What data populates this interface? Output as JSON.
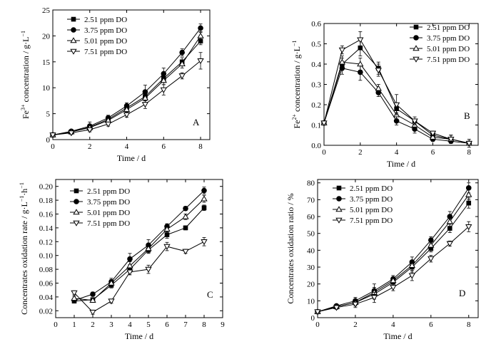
{
  "chart_data": [
    {
      "type": "line",
      "panel_label": "A",
      "xlabel": "Time / d",
      "ylabel_main": "Fe",
      "ylabel_sup": "3+",
      "ylabel_rest": " concentration / g·L",
      "ylabel_unit_sup": "−1",
      "xlim": [
        0,
        8.5
      ],
      "ylim": [
        0,
        25
      ],
      "xticks": [
        0,
        2,
        4,
        6,
        8
      ],
      "yticks": [
        0,
        5,
        10,
        15,
        20,
        25
      ],
      "legend_position": "top-left",
      "series": [
        {
          "name": "2.51 ppm DO",
          "marker": "square",
          "x": [
            0,
            1,
            2,
            3,
            4,
            5,
            6,
            7,
            8
          ],
          "y": [
            0.9,
            1.5,
            2.4,
            3.9,
            6.1,
            8.3,
            11.8,
            15.0,
            19.0
          ],
          "err": [
            0,
            0.3,
            0.6,
            0.5,
            0.6,
            0.8,
            0.8,
            0.8,
            0.7
          ]
        },
        {
          "name": "3.75 ppm DO",
          "marker": "circle",
          "x": [
            0,
            1,
            2,
            3,
            4,
            5,
            6,
            7,
            8
          ],
          "y": [
            0.9,
            1.6,
            2.6,
            4.2,
            6.5,
            9.2,
            12.7,
            16.8,
            21.5
          ],
          "err": [
            0,
            0.3,
            0.8,
            0.5,
            0.6,
            1.3,
            1.1,
            0.7,
            0.8
          ]
        },
        {
          "name": "5.01 ppm DO",
          "marker": "triangle-up",
          "x": [
            0,
            1,
            2,
            3,
            4,
            5,
            6,
            7,
            8
          ],
          "y": [
            0.9,
            1.5,
            2.3,
            3.7,
            5.8,
            8.0,
            11.4,
            14.6,
            20.0
          ],
          "err": [
            0,
            0.3,
            0.6,
            0.5,
            0.6,
            0.8,
            0.8,
            0.8,
            0.8
          ]
        },
        {
          "name": "7.51 ppm DO",
          "marker": "triangle-down",
          "x": [
            0,
            1,
            2,
            3,
            4,
            5,
            6,
            7,
            8
          ],
          "y": [
            0.9,
            1.3,
            1.9,
            3.0,
            4.8,
            6.8,
            9.6,
            12.3,
            15.2
          ],
          "err": [
            0,
            0.3,
            0.4,
            0.4,
            0.5,
            0.8,
            1.0,
            0.6,
            1.6
          ]
        }
      ]
    },
    {
      "type": "line",
      "panel_label": "B",
      "xlabel": "Time / d",
      "ylabel_main": "Fe",
      "ylabel_sup": "2+",
      "ylabel_rest": " concentration / g·L",
      "ylabel_unit_sup": "−1",
      "xlim": [
        0,
        8.5
      ],
      "ylim": [
        0,
        0.6
      ],
      "xticks": [
        0,
        2,
        4,
        6,
        8
      ],
      "yticks": [
        0.0,
        0.1,
        0.2,
        0.3,
        0.4,
        0.5,
        0.6
      ],
      "ytick_labels": [
        "0.0",
        "0.1",
        "0.2",
        "0.3",
        "0.4",
        "0.5",
        "0.6"
      ],
      "legend_position": "top-right",
      "series": [
        {
          "name": "2.51 ppm DO",
          "marker": "square",
          "x": [
            0,
            1,
            2,
            3,
            4,
            5,
            6,
            7,
            8
          ],
          "y": [
            0.11,
            0.4,
            0.48,
            0.38,
            0.18,
            0.12,
            0.05,
            0.03,
            0.01
          ],
          "err": [
            0,
            0.03,
            0.04,
            0.03,
            0.02,
            0.01,
            0.01,
            0.02,
            0.01
          ]
        },
        {
          "name": "3.75 ppm DO",
          "marker": "circle",
          "x": [
            0,
            1,
            2,
            3,
            4,
            5,
            6,
            7,
            8
          ],
          "y": [
            0.11,
            0.38,
            0.36,
            0.26,
            0.12,
            0.08,
            0.03,
            0.02,
            0.01
          ],
          "err": [
            0,
            0.03,
            0.04,
            0.02,
            0.02,
            0.02,
            0.01,
            0.01,
            0.01
          ]
        },
        {
          "name": "5.01 ppm DO",
          "marker": "triangle-up",
          "x": [
            0,
            1,
            2,
            3,
            4,
            5,
            6,
            7,
            8
          ],
          "y": [
            0.11,
            0.41,
            0.4,
            0.28,
            0.15,
            0.1,
            0.04,
            0.03,
            0.01
          ],
          "err": [
            0,
            0.03,
            0.03,
            0.02,
            0.02,
            0.01,
            0.01,
            0.02,
            0.01
          ]
        },
        {
          "name": "7.51 ppm DO",
          "marker": "triangle-down",
          "x": [
            0,
            1,
            2,
            3,
            4,
            5,
            6,
            7,
            8
          ],
          "y": [
            0.11,
            0.47,
            0.52,
            0.37,
            0.2,
            0.12,
            0.06,
            0.03,
            0.01
          ],
          "err": [
            0,
            0.02,
            0.04,
            0.03,
            0.05,
            0.02,
            0.01,
            0.02,
            0.02
          ]
        }
      ]
    },
    {
      "type": "line",
      "panel_label": "C",
      "xlabel": "Time / d",
      "ylabel_main": "Concentrates oxidation rate / g·L",
      "ylabel_sup": "−1",
      "ylabel_rest": "·h",
      "ylabel_unit_sup": "−1",
      "xlim": [
        0,
        9
      ],
      "ylim": [
        0.01,
        0.21
      ],
      "xticks": [
        0,
        1,
        2,
        3,
        4,
        5,
        6,
        7,
        8,
        9
      ],
      "yticks": [
        0.02,
        0.04,
        0.06,
        0.08,
        0.1,
        0.12,
        0.14,
        0.16,
        0.18,
        0.2
      ],
      "ytick_labels": [
        "0.02",
        "0.04",
        "0.06",
        "0.08",
        "0.10",
        "0.12",
        "0.14",
        "0.16",
        "0.18",
        "0.20"
      ],
      "legend_position": "top-left",
      "series": [
        {
          "name": "2.51 ppm DO",
          "marker": "square",
          "x": [
            1,
            2,
            3,
            4,
            5,
            6,
            7,
            8
          ],
          "y": [
            0.034,
            0.036,
            0.057,
            0.08,
            0.108,
            0.13,
            0.14,
            0.169
          ],
          "err": [
            0.003,
            0.003,
            0.004,
            0.005,
            0.005,
            0.005,
            0.003,
            0.004
          ]
        },
        {
          "name": "3.75 ppm DO",
          "marker": "circle",
          "x": [
            1,
            2,
            3,
            4,
            5,
            6,
            7,
            8
          ],
          "y": [
            0.035,
            0.044,
            0.062,
            0.095,
            0.115,
            0.142,
            0.168,
            0.194
          ],
          "err": [
            0.003,
            0.003,
            0.005,
            0.008,
            0.008,
            0.004,
            0.003,
            0.005
          ]
        },
        {
          "name": "5.01 ppm DO",
          "marker": "triangle-up",
          "x": [
            1,
            2,
            3,
            4,
            5,
            6,
            7,
            8
          ],
          "y": [
            0.038,
            0.035,
            0.06,
            0.085,
            0.11,
            0.138,
            0.156,
            0.182
          ],
          "err": [
            0.003,
            0.003,
            0.005,
            0.006,
            0.006,
            0.004,
            0.004,
            0.005
          ]
        },
        {
          "name": "7.51 ppm DO",
          "marker": "triangle-down",
          "x": [
            1,
            2,
            3,
            4,
            5,
            6,
            7,
            8
          ],
          "y": [
            0.046,
            0.018,
            0.034,
            0.076,
            0.08,
            0.113,
            0.106,
            0.12
          ],
          "err": [
            0.003,
            0.003,
            0.003,
            0.004,
            0.006,
            0.006,
            0.003,
            0.006
          ]
        }
      ]
    },
    {
      "type": "line",
      "panel_label": "D",
      "xlabel": "Time / d",
      "ylabel_main": "Concentrates oxidation ratio / %",
      "ylabel_sup": "",
      "ylabel_rest": "",
      "ylabel_unit_sup": "",
      "xlim": [
        0,
        8.5
      ],
      "ylim": [
        0,
        82
      ],
      "xticks": [
        0,
        2,
        4,
        6,
        8
      ],
      "yticks": [
        0,
        10,
        20,
        30,
        40,
        50,
        60,
        70,
        80
      ],
      "legend_position": "top-left",
      "series": [
        {
          "name": "2.51 ppm DO",
          "marker": "square",
          "x": [
            0,
            1,
            2,
            3,
            4,
            5,
            6,
            7,
            8
          ],
          "y": [
            3.5,
            6.5,
            9.0,
            14.0,
            21.0,
            30.0,
            41.0,
            53.0,
            68.0
          ],
          "err": [
            0.5,
            1.0,
            2.0,
            3.0,
            2.0,
            3.0,
            2.0,
            2.5,
            3.0
          ]
        },
        {
          "name": "3.75 ppm DO",
          "marker": "circle",
          "x": [
            0,
            1,
            2,
            3,
            4,
            5,
            6,
            7,
            8
          ],
          "y": [
            3.5,
            7.0,
            10.0,
            16.0,
            23.0,
            33.0,
            46.0,
            60.0,
            77.0
          ],
          "err": [
            0.5,
            1.0,
            2.0,
            4.0,
            2.0,
            3.0,
            2.0,
            3.0,
            3.0
          ]
        },
        {
          "name": "5.01 ppm DO",
          "marker": "triangle-up",
          "x": [
            0,
            1,
            2,
            3,
            4,
            5,
            6,
            7,
            8
          ],
          "y": [
            3.5,
            6.5,
            9.0,
            15.0,
            22.0,
            31.0,
            43.0,
            57.0,
            73.0
          ],
          "err": [
            0.5,
            1.0,
            2.0,
            3.0,
            2.0,
            3.0,
            2.0,
            3.0,
            3.0
          ]
        },
        {
          "name": "7.51 ppm DO",
          "marker": "triangle-down",
          "x": [
            0,
            1,
            2,
            3,
            4,
            5,
            6,
            7,
            8
          ],
          "y": [
            3.5,
            6.0,
            8.0,
            12.0,
            18.0,
            25.0,
            35.0,
            44.0,
            54.0
          ],
          "err": [
            0.5,
            1.0,
            2.0,
            3.0,
            2.0,
            3.0,
            2.0,
            1.5,
            3.0
          ]
        }
      ]
    }
  ]
}
